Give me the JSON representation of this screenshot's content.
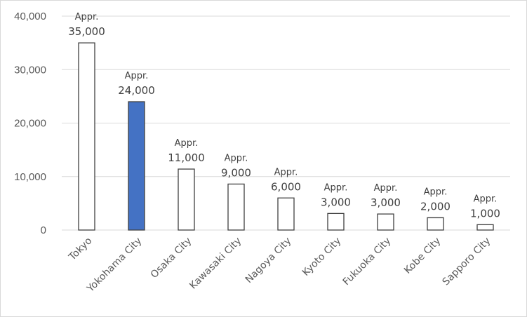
{
  "chart_data": {
    "type": "bar",
    "title": "",
    "xlabel": "",
    "ylabel": "",
    "ylim": [
      0,
      40000
    ],
    "yticks": [
      0,
      10000,
      20000,
      30000,
      40000
    ],
    "ytick_labels": [
      "0",
      "10,000",
      "20,000",
      "30,000",
      "40,000"
    ],
    "grid": true,
    "categories": [
      "Tokyo",
      "Yokohama City",
      "Osaka City",
      "Kawasaki City",
      "Nagoya City",
      "Kyoto City",
      "Fukuoka City",
      "Kobe City",
      "Sapporo City"
    ],
    "values": [
      35000,
      24000,
      11400,
      8600,
      6000,
      3100,
      3000,
      2300,
      1000
    ],
    "data_labels": [
      [
        "Appr.",
        "35,000"
      ],
      [
        "Appr.",
        "24,000"
      ],
      [
        "Appr.",
        "11,000"
      ],
      [
        "Appr.",
        "9,000"
      ],
      [
        "Appr.",
        "6,000"
      ],
      [
        "Appr.",
        "3,000"
      ],
      [
        "Appr.",
        "3,000"
      ],
      [
        "Appr.",
        "2,000"
      ],
      [
        "Appr.",
        "1,000"
      ]
    ],
    "bar_fill": "#ffffff",
    "bar_stroke": "#404040",
    "highlight_index": 1,
    "highlight_fill": "#4472c4",
    "highlight_stroke": "#404040",
    "grid_color": "#d9d9d9"
  }
}
